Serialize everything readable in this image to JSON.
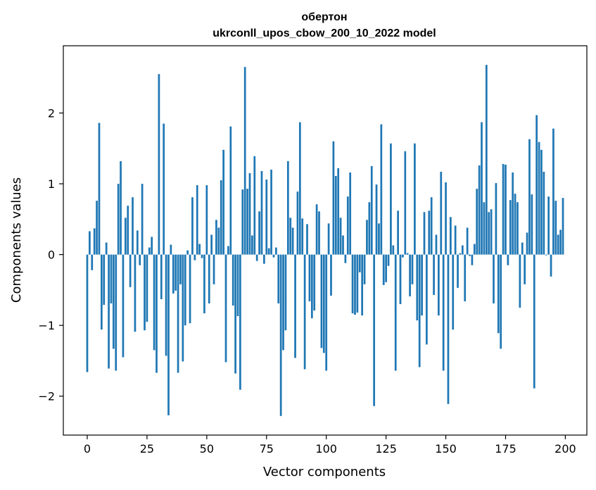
{
  "chart_data": {
    "type": "bar",
    "title_line1": "обертон",
    "title_line2": "ukrconll_upos_cbow_200_10_2022 model",
    "xlabel": "Vector components",
    "ylabel": "Components values",
    "xlim": [
      -10,
      209
    ],
    "ylim": [
      -2.55,
      2.95
    ],
    "xticks": [
      0,
      25,
      50,
      75,
      100,
      125,
      150,
      175,
      200
    ],
    "yticks": [
      -2,
      -1,
      0,
      1,
      2
    ],
    "ytick_labels": [
      "−2",
      "−1",
      "0",
      "1",
      "2"
    ],
    "bar_color": "#1f77b4",
    "values": [
      -1.66,
      0.33,
      -0.22,
      0.37,
      0.76,
      1.86,
      -1.06,
      -0.71,
      0.17,
      -1.61,
      -0.69,
      -1.33,
      -1.64,
      1.0,
      1.32,
      -1.45,
      0.52,
      0.69,
      -0.46,
      0.81,
      -1.09,
      0.34,
      -0.15,
      1.0,
      -1.07,
      -0.95,
      0.1,
      0.25,
      -1.35,
      -1.67,
      2.55,
      -0.63,
      1.85,
      -1.43,
      -2.27,
      0.14,
      -0.55,
      -0.51,
      -1.67,
      -0.42,
      -1.51,
      -1.0,
      0.06,
      -0.97,
      0.81,
      -0.08,
      0.98,
      0.15,
      -0.05,
      -0.83,
      0.98,
      -0.69,
      0.28,
      -0.42,
      0.49,
      0.38,
      1.05,
      1.48,
      -1.52,
      0.12,
      1.81,
      -0.72,
      -1.68,
      -0.87,
      -1.91,
      0.92,
      2.65,
      0.93,
      1.15,
      0.27,
      1.39,
      -0.09,
      0.61,
      1.18,
      -0.13,
      1.06,
      0.09,
      1.2,
      -0.04,
      0.1,
      -0.69,
      -2.28,
      -1.35,
      -1.07,
      1.32,
      0.52,
      0.38,
      -1.46,
      0.89,
      1.87,
      0.51,
      -1.62,
      0.43,
      -0.66,
      -0.9,
      -0.79,
      0.71,
      0.61,
      -1.32,
      -1.39,
      -1.64,
      0.44,
      -0.58,
      1.6,
      1.11,
      1.22,
      0.52,
      0.27,
      -0.12,
      0.82,
      1.16,
      -0.83,
      -0.85,
      -0.82,
      -0.25,
      -0.86,
      -0.42,
      0.49,
      0.74,
      1.25,
      -2.14,
      0.99,
      0.44,
      1.84,
      -0.43,
      -0.39,
      -0.16,
      1.57,
      0.13,
      -1.64,
      0.62,
      -0.7,
      -0.04,
      1.46,
      0.02,
      -0.59,
      -0.42,
      1.57,
      -0.93,
      -1.59,
      -0.86,
      0.6,
      -1.27,
      0.62,
      0.81,
      -0.57,
      0.28,
      -0.86,
      1.17,
      -1.64,
      1.02,
      -2.11,
      0.53,
      -1.06,
      0.41,
      -0.47,
      0.02,
      0.13,
      -0.66,
      0.38,
      -0.02,
      -0.15,
      0.15,
      0.93,
      1.26,
      1.87,
      0.74,
      2.68,
      0.6,
      0.64,
      -0.69,
      1.01,
      -1.11,
      -1.33,
      1.28,
      1.27,
      -0.15,
      0.77,
      1.16,
      0.86,
      0.74,
      -0.75,
      0.17,
      -0.42,
      0.31,
      1.63,
      0.85,
      -1.89,
      1.97,
      1.59,
      1.48,
      1.17,
      -0.01,
      0.82,
      -0.31,
      1.78,
      0.76,
      0.28,
      0.35,
      0.8
    ]
  }
}
